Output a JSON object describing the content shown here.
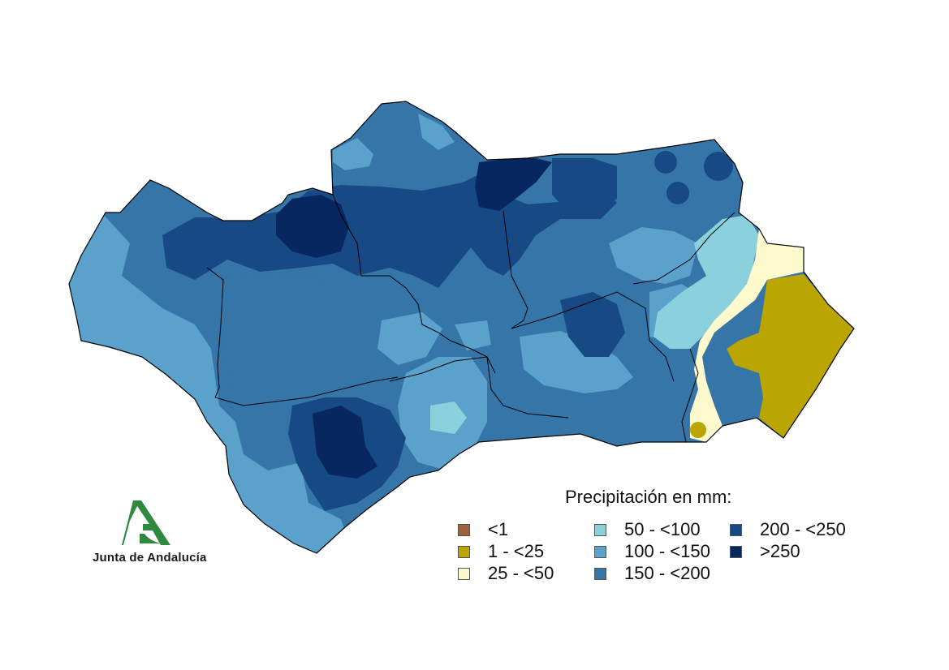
{
  "map": {
    "region": "Andalucía",
    "metric_unit": "mm",
    "colors": {
      "lt1": "#a0623a",
      "1_25": "#bba500",
      "25_50": "#fffacd",
      "50_100": "#8ad1dd",
      "100_150": "#5aa1cc",
      "150_200": "#3575a8",
      "200_250": "#174a85",
      "gt250": "#08265f"
    }
  },
  "legend": {
    "title": "Precipitación en mm:",
    "items": [
      {
        "label": "<1",
        "color": "#a0623a"
      },
      {
        "label": "1 - <25",
        "color": "#bba500"
      },
      {
        "label": "25 - <50",
        "color": "#fffacd"
      },
      {
        "label": "50 - <100",
        "color": "#8ad1dd"
      },
      {
        "label": "100 - <150",
        "color": "#5aa1cc"
      },
      {
        "label": "150 - <200",
        "color": "#3575a8"
      },
      {
        "label": "200 - <250",
        "color": "#174a85"
      },
      {
        "label": ">250",
        "color": "#08265f"
      }
    ]
  },
  "logo": {
    "text": "Junta de Andalucía",
    "color": "#2d8a3e"
  }
}
